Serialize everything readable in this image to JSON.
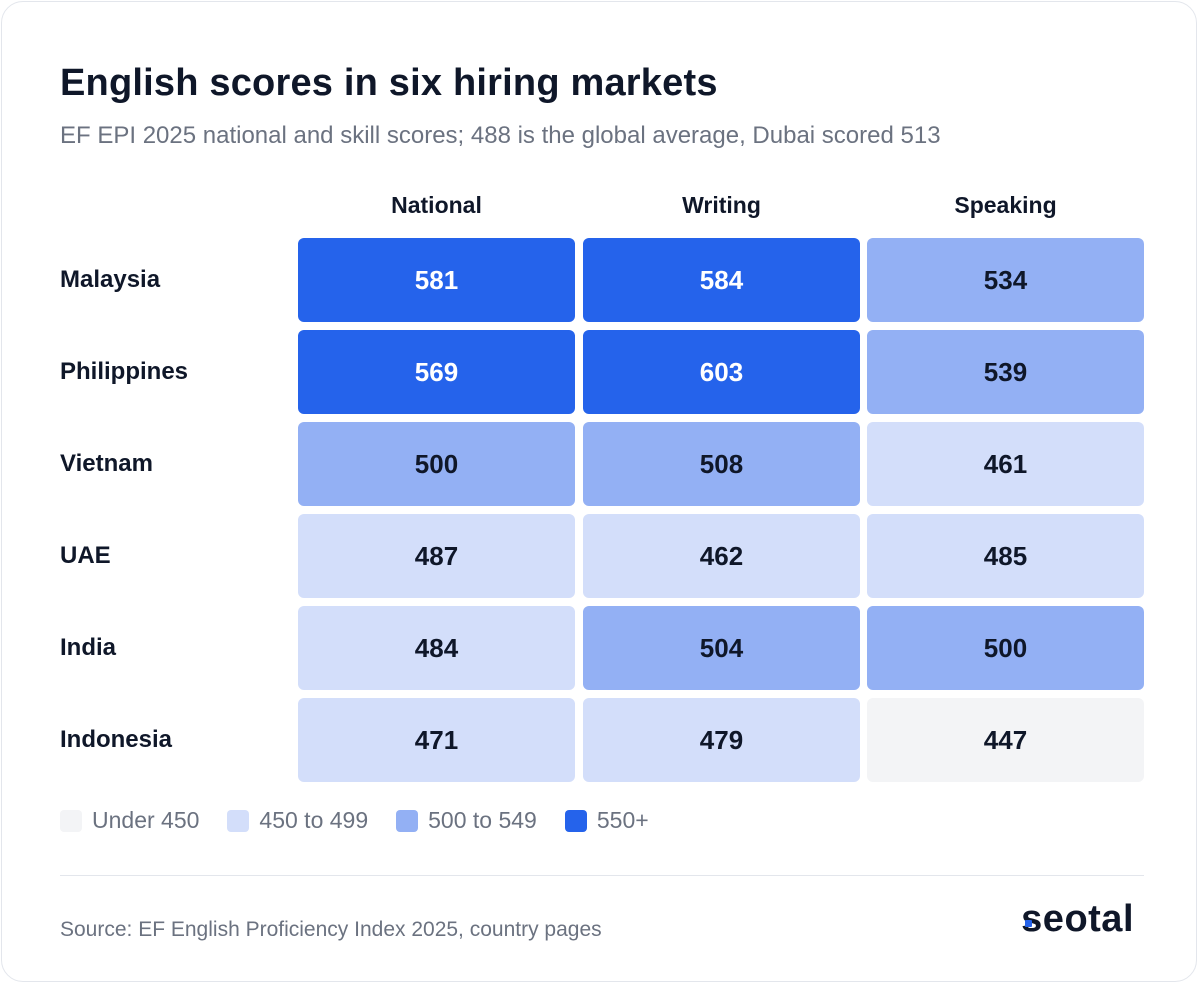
{
  "title": "English scores in six hiring markets",
  "subtitle": "EF EPI 2025 national and skill scores; 488 is the global average, Dubai scored 513",
  "chart_data": {
    "type": "heatmap",
    "columns": [
      "National",
      "Writing",
      "Speaking"
    ],
    "rows": [
      {
        "label": "Malaysia",
        "values": [
          581,
          584,
          534
        ]
      },
      {
        "label": "Philippines",
        "values": [
          569,
          603,
          539
        ]
      },
      {
        "label": "Vietnam",
        "values": [
          500,
          508,
          461
        ]
      },
      {
        "label": "UAE",
        "values": [
          487,
          462,
          485
        ]
      },
      {
        "label": "India",
        "values": [
          484,
          504,
          500
        ]
      },
      {
        "label": "Indonesia",
        "values": [
          471,
          479,
          447
        ]
      }
    ],
    "legend": [
      {
        "label": "Under 450",
        "min": null,
        "max": 449,
        "color": "#f3f4f6",
        "text_color": "#0f1729"
      },
      {
        "label": "450 to 499",
        "min": 450,
        "max": 499,
        "color": "#d3defa",
        "text_color": "#0f1729"
      },
      {
        "label": "500 to 549",
        "min": 500,
        "max": 549,
        "color": "#93b0f4",
        "text_color": "#0f1729"
      },
      {
        "label": "550+",
        "min": 550,
        "max": null,
        "color": "#2563eb",
        "text_color": "#ffffff"
      }
    ]
  },
  "footer": {
    "source": "Source: EF English Proficiency Index 2025, country pages",
    "brand": "seotal",
    "brand_accent": "#2563eb"
  }
}
